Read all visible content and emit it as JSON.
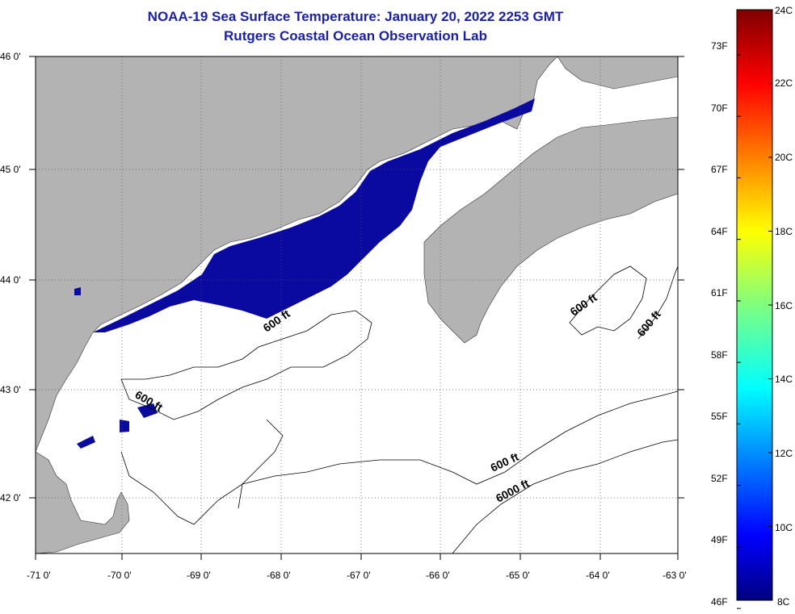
{
  "title": {
    "line1": "NOAA-19 Sea Surface Temperature:  January 20, 2022 2253 GMT",
    "line2": "Rutgers Coastal Ocean Observation Lab"
  },
  "colors": {
    "title": "#1a20a8",
    "land": "#b3b3b3",
    "sst_cold": "#0a0aa0",
    "no_data": "#ffffff"
  },
  "axes": {
    "longitude_ticks": [
      "-71 0'",
      "-70 0'",
      "-69 0'",
      "-68 0'",
      "-67 0'",
      "-66 0'",
      "-65 0'",
      "-64 0'",
      "-63 0'"
    ],
    "latitude_ticks": [
      "46 0'",
      "45 0'",
      "44 0'",
      "43 0'",
      "42 0'"
    ],
    "lon_range": [
      -71,
      -63
    ],
    "lat_range": [
      41.5,
      46
    ]
  },
  "contour_labels": [
    {
      "text": "600 ft"
    },
    {
      "text": "600 ft"
    },
    {
      "text": "600 ft"
    },
    {
      "text": "600 ft"
    },
    {
      "text": "600 ft"
    },
    {
      "text": "6000 ft"
    }
  ],
  "colorbar": {
    "min_c": 8,
    "max_c": 24,
    "celsius_labels": [
      "24C",
      "22C",
      "20C",
      "18C",
      "16C",
      "14C",
      "12C",
      "10C",
      "8C"
    ],
    "fahrenheit_labels": [
      "73F",
      "70F",
      "67F",
      "64F",
      "61F",
      "58F",
      "55F",
      "52F",
      "49F",
      "46F"
    ]
  }
}
